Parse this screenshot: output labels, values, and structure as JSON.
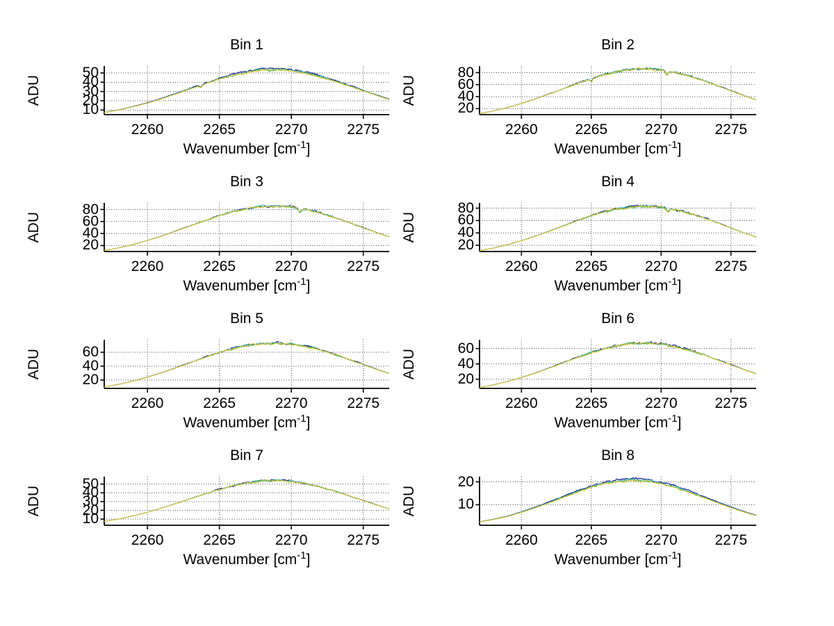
{
  "labels": {
    "ylabel": "ADU",
    "xlabel_prefix": "Wavenumber [cm",
    "xlabel_sup": "-1",
    "xlabel_suffix": "]"
  },
  "style": {
    "background": "#ffffff",
    "axis_color": "#000000",
    "grid_color": "#3a3a3a",
    "trace_colors": [
      "#000d85",
      "#56c7d8",
      "#3fae49",
      "#e9c63b"
    ],
    "trace_names": [
      "trace-blue",
      "trace-cyan",
      "trace-green",
      "trace-yellow"
    ]
  },
  "chart_data": [
    {
      "type": "line",
      "title": "Bin 1",
      "xlabel": "Wavenumber [cm^-1]",
      "ylabel": "ADU",
      "x": [
        2257,
        2258,
        2259,
        2260,
        2261,
        2262,
        2263,
        2264,
        2265,
        2266,
        2267,
        2268,
        2269,
        2270,
        2271,
        2272,
        2273,
        2274,
        2275,
        2276,
        2277
      ],
      "adu": [
        7.2,
        9.9,
        13.4,
        17.4,
        22.1,
        27.3,
        32.7,
        38.1,
        43.1,
        47.4,
        50.6,
        52.5,
        53.0,
        51.9,
        49.5,
        45.7,
        41.1,
        35.9,
        30.5,
        25.2,
        20.2
      ],
      "n_overlapping_traces": 4,
      "grid": true,
      "xticks": [
        2260,
        2265,
        2270,
        2275
      ],
      "yticks": [
        10,
        20,
        30,
        40,
        50
      ],
      "xlim": [
        2257,
        2276.8
      ],
      "ylim": [
        5,
        57.5
      ],
      "render": {
        "spread": 0.03,
        "notches": [
          2263.7
        ],
        "seed": 11
      }
    },
    {
      "type": "line",
      "title": "Bin 2",
      "xlabel": "Wavenumber [cm^-1]",
      "ylabel": "ADU",
      "x": [
        2257,
        2258,
        2259,
        2260,
        2261,
        2262,
        2263,
        2264,
        2265,
        2266,
        2267,
        2268,
        2269,
        2270,
        2271,
        2272,
        2273,
        2274,
        2275,
        2276,
        2277
      ],
      "adu": [
        11.6,
        16.1,
        21.7,
        28.3,
        35.9,
        44.3,
        53.1,
        61.7,
        69.9,
        76.9,
        82.1,
        85.2,
        86.0,
        84.3,
        80.2,
        74.2,
        66.7,
        58.3,
        49.5,
        40.9,
        32.8
      ],
      "n_overlapping_traces": 4,
      "grid": true,
      "xticks": [
        2260,
        2265,
        2270,
        2275
      ],
      "yticks": [
        20,
        40,
        60,
        80
      ],
      "xlim": [
        2257,
        2276.8
      ],
      "ylim": [
        10,
        91
      ],
      "render": {
        "spread": 0.01,
        "notches": [
          2265.0,
          2270.4
        ],
        "seed": 23
      }
    },
    {
      "type": "line",
      "title": "Bin 3",
      "xlabel": "Wavenumber [cm^-1]",
      "ylabel": "ADU",
      "x": [
        2257,
        2258,
        2259,
        2260,
        2261,
        2262,
        2263,
        2264,
        2265,
        2266,
        2267,
        2268,
        2269,
        2270,
        2271,
        2272,
        2273,
        2274,
        2275,
        2276,
        2277
      ],
      "adu": [
        11.5,
        16.0,
        21.5,
        28.1,
        35.6,
        44.0,
        52.7,
        61.3,
        69.5,
        76.4,
        81.6,
        84.7,
        85.5,
        83.8,
        79.8,
        73.8,
        66.3,
        58.0,
        49.2,
        40.6,
        32.6
      ],
      "n_overlapping_traces": 4,
      "grid": true,
      "xticks": [
        2260,
        2265,
        2270,
        2275
      ],
      "yticks": [
        20,
        40,
        60,
        80
      ],
      "xlim": [
        2257,
        2276.8
      ],
      "ylim": [
        10,
        91
      ],
      "render": {
        "spread": 0.01,
        "notches": [
          2270.6
        ],
        "seed": 37
      }
    },
    {
      "type": "line",
      "title": "Bin 4",
      "xlabel": "Wavenumber [cm^-1]",
      "ylabel": "ADU",
      "x": [
        2257,
        2258,
        2259,
        2260,
        2261,
        2262,
        2263,
        2264,
        2265,
        2266,
        2267,
        2268,
        2269,
        2270,
        2271,
        2272,
        2273,
        2274,
        2275,
        2276,
        2277
      ],
      "adu": [
        11.2,
        15.5,
        20.9,
        27.3,
        34.6,
        42.7,
        51.2,
        59.6,
        67.5,
        74.2,
        79.3,
        82.3,
        83.0,
        81.3,
        77.4,
        71.6,
        64.4,
        56.3,
        47.8,
        39.4,
        31.6
      ],
      "n_overlapping_traces": 4,
      "grid": true,
      "xticks": [
        2260,
        2265,
        2270,
        2275
      ],
      "yticks": [
        20,
        40,
        60,
        80
      ],
      "xlim": [
        2257,
        2276.8
      ],
      "ylim": [
        10,
        88.5
      ],
      "render": {
        "spread": 0.01,
        "notches": [
          2270.5
        ],
        "seed": 41
      }
    },
    {
      "type": "line",
      "title": "Bin 5",
      "xlabel": "Wavenumber [cm^-1]",
      "ylabel": "ADU",
      "x": [
        2257,
        2258,
        2259,
        2260,
        2261,
        2262,
        2263,
        2264,
        2265,
        2266,
        2267,
        2268,
        2269,
        2270,
        2271,
        2272,
        2273,
        2274,
        2275,
        2276,
        2277
      ],
      "adu": [
        9.9,
        13.7,
        18.4,
        24.0,
        30.4,
        37.6,
        45.0,
        52.4,
        59.3,
        65.3,
        69.7,
        72.3,
        73.0,
        71.5,
        68.1,
        63.0,
        56.6,
        49.5,
        42.0,
        34.7,
        27.8
      ],
      "n_overlapping_traces": 4,
      "grid": true,
      "xticks": [
        2260,
        2265,
        2270,
        2275
      ],
      "yticks": [
        20,
        40,
        60
      ],
      "xlim": [
        2257,
        2276.8
      ],
      "ylim": [
        8,
        78
      ],
      "render": {
        "spread": 0.012,
        "notches": [],
        "seed": 53
      }
    },
    {
      "type": "line",
      "title": "Bin 6",
      "xlabel": "Wavenumber [cm^-1]",
      "ylabel": "ADU",
      "x": [
        2257,
        2258,
        2259,
        2260,
        2261,
        2262,
        2263,
        2264,
        2265,
        2266,
        2267,
        2268,
        2269,
        2270,
        2271,
        2272,
        2273,
        2274,
        2275,
        2276,
        2277
      ],
      "adu": [
        9.0,
        12.5,
        16.9,
        22.0,
        27.9,
        34.5,
        41.3,
        48.1,
        54.5,
        59.9,
        64.0,
        66.4,
        67.0,
        65.7,
        62.5,
        57.8,
        52.0,
        45.4,
        38.6,
        31.8,
        25.5
      ],
      "n_overlapping_traces": 4,
      "grid": true,
      "xticks": [
        2260,
        2265,
        2270,
        2275
      ],
      "yticks": [
        20,
        40,
        60
      ],
      "xlim": [
        2257,
        2276.8
      ],
      "ylim": [
        8,
        71.5
      ],
      "render": {
        "spread": 0.012,
        "notches": [],
        "seed": 61
      }
    },
    {
      "type": "line",
      "title": "Bin 7",
      "xlabel": "Wavenumber [cm^-1]",
      "ylabel": "ADU",
      "x": [
        2257,
        2258,
        2259,
        2260,
        2261,
        2262,
        2263,
        2264,
        2265,
        2266,
        2267,
        2268,
        2269,
        2270,
        2271,
        2272,
        2273,
        2274,
        2275,
        2276,
        2277
      ],
      "adu": [
        7.3,
        10.1,
        13.6,
        17.8,
        22.5,
        27.8,
        33.3,
        38.8,
        43.9,
        48.3,
        51.6,
        53.5,
        54.0,
        52.9,
        50.4,
        46.6,
        41.9,
        36.6,
        31.1,
        25.7,
        20.6
      ],
      "n_overlapping_traces": 4,
      "grid": true,
      "xticks": [
        2260,
        2265,
        2270,
        2275
      ],
      "yticks": [
        10,
        20,
        30,
        40,
        50
      ],
      "xlim": [
        2257,
        2276.8
      ],
      "ylim": [
        3,
        58.5
      ],
      "render": {
        "spread": 0.006,
        "notches": [],
        "seed": 71
      }
    },
    {
      "type": "line",
      "title": "Bin 8",
      "xlabel": "Wavenumber [cm^-1]",
      "ylabel": "ADU",
      "x": [
        2257,
        2258,
        2259,
        2260,
        2261,
        2262,
        2263,
        2264,
        2265,
        2266,
        2267,
        2268,
        2269,
        2270,
        2271,
        2272,
        2273,
        2274,
        2275,
        2276,
        2277
      ],
      "adu": [
        2.4,
        3.5,
        4.8,
        6.6,
        8.6,
        10.8,
        13.1,
        15.4,
        17.5,
        19.1,
        20.1,
        20.5,
        20.1,
        19.1,
        17.5,
        15.4,
        13.1,
        10.8,
        8.6,
        6.6,
        4.8
      ],
      "n_overlapping_traces": 4,
      "grid": true,
      "xticks": [
        2260,
        2265,
        2270,
        2275
      ],
      "yticks": [
        10,
        20
      ],
      "xlim": [
        2257,
        2276.8
      ],
      "ylim": [
        1,
        22.3
      ],
      "render": {
        "spread": 0.045,
        "notches": [],
        "seed": 83
      }
    }
  ]
}
